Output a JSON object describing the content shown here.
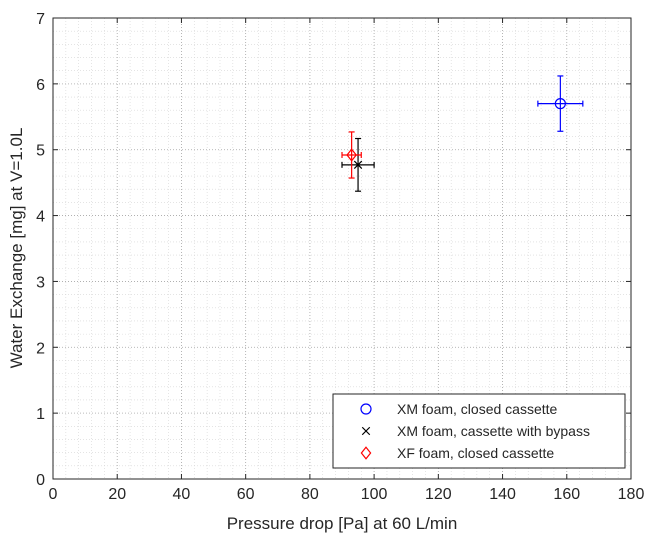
{
  "chart_data": {
    "type": "scatter",
    "xlabel": "Pressure drop [Pa] at 60 L/min",
    "ylabel": "Water Exchange [mg] at V=1.0L",
    "xlim": [
      0,
      180
    ],
    "ylim": [
      0,
      7
    ],
    "xticks": [
      0,
      20,
      40,
      60,
      80,
      100,
      120,
      140,
      160,
      180
    ],
    "yticks": [
      0,
      1,
      2,
      3,
      4,
      5,
      6,
      7
    ],
    "grid": true,
    "minor_grid": true,
    "legend_position": "bottom-right",
    "series": [
      {
        "name": "XM foam, closed cassette",
        "marker": "circle",
        "color": "#0000ff",
        "x": 158,
        "y": 5.7,
        "x_err": 7,
        "y_err": 0.42
      },
      {
        "name": "XM foam, cassette with bypass",
        "marker": "x",
        "color": "#000000",
        "x": 95,
        "y": 4.77,
        "x_err": 5,
        "y_err": 0.4
      },
      {
        "name": "XF foam, closed cassette",
        "marker": "diamond",
        "color": "#ff0000",
        "x": 93,
        "y": 4.92,
        "x_err": 3,
        "y_err": 0.35
      }
    ]
  }
}
